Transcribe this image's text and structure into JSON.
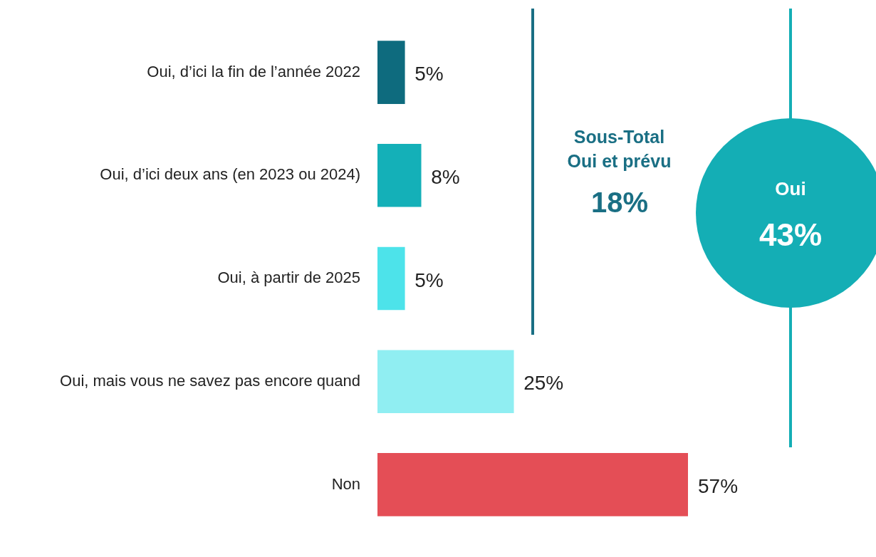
{
  "chart_data": {
    "type": "bar",
    "orientation": "horizontal",
    "categories": [
      "Oui, d’ici la fin de l’année 2022",
      "Oui, d’ici deux ans (en 2023 ou 2024)",
      "Oui, à partir de 2025",
      "Oui, mais vous ne savez pas encore quand",
      "Non"
    ],
    "values": [
      5,
      8,
      5,
      25,
      57
    ],
    "colors": [
      "#0e6b7e",
      "#14b0b8",
      "#4de3ea",
      "#90eef2",
      "#e44e56"
    ],
    "value_labels": [
      "5%",
      "8%",
      "5%",
      "25%",
      "57%"
    ],
    "tick_labels": "y",
    "annotations": [
      "Sous-Total Oui et prévu",
      "18%",
      "Oui",
      "43%"
    ]
  }
}
